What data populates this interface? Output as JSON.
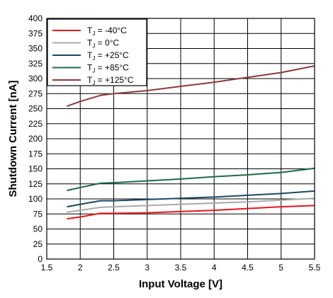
{
  "chart_data": {
    "type": "line",
    "xlabel": "Input Voltage [V]",
    "ylabel": "Shutdown Current [nA]",
    "xlim": [
      1.5,
      5.5
    ],
    "ylim": [
      0,
      400
    ],
    "xticks": [
      1.5,
      2,
      2.5,
      3,
      3.5,
      4,
      4.5,
      5,
      5.5
    ],
    "xtick_labels": [
      "1.5",
      "2",
      "2.5",
      "3",
      "3.5",
      "4",
      "4.5",
      "5",
      "5.5"
    ],
    "yticks": [
      0,
      25,
      50,
      75,
      100,
      125,
      150,
      175,
      200,
      225,
      250,
      275,
      300,
      325,
      350,
      375,
      400
    ],
    "ytick_labels": [
      "0",
      "25",
      "50",
      "75",
      "100",
      "125",
      "150",
      "175",
      "200",
      "225",
      "250",
      "275",
      "300",
      "325",
      "350",
      "375",
      "400"
    ],
    "grid": true,
    "legend_position": "top-left",
    "series": [
      {
        "name": "T_J = -40°C",
        "legend_main": "T",
        "legend_sub": "J",
        "legend_rest": " = -40°C",
        "color": "#e8141c",
        "x": [
          1.8,
          2.0,
          2.3,
          2.5,
          3.0,
          3.5,
          4.0,
          4.5,
          5.0,
          5.5
        ],
        "y": [
          67,
          70,
          76,
          76,
          77,
          79,
          81,
          84,
          87,
          89
        ]
      },
      {
        "name": "T_J = 0°C",
        "legend_main": "T",
        "legend_sub": "J",
        "legend_rest": " = 0°C",
        "color": "#aaaaaa",
        "x": [
          1.8,
          2.0,
          2.3,
          2.5,
          3.0,
          3.5,
          4.0,
          4.5,
          5.0,
          5.5
        ],
        "y": [
          78,
          81,
          86,
          87,
          89,
          91,
          93,
          95,
          98,
          101
        ]
      },
      {
        "name": "T_J = +25°C",
        "legend_main": "T",
        "legend_sub": "J",
        "legend_rest": " = +25°C",
        "color": "#1b4a64",
        "x": [
          1.8,
          2.0,
          2.3,
          2.5,
          3.0,
          3.5,
          4.0,
          4.5,
          5.0,
          5.5
        ],
        "y": [
          87,
          91,
          97,
          97,
          99,
          101,
          103,
          106,
          109,
          113
        ]
      },
      {
        "name": "T_J = +85°C",
        "legend_main": "T",
        "legend_sub": "J",
        "legend_rest": " = +85°C",
        "color": "#1e6b46",
        "x": [
          1.8,
          2.0,
          2.3,
          2.5,
          3.0,
          3.5,
          4.0,
          4.5,
          5.0,
          5.5
        ],
        "y": [
          114,
          119,
          126,
          127,
          130,
          133,
          137,
          140,
          144,
          151
        ]
      },
      {
        "name": "T_J = +125°C",
        "legend_main": "T",
        "legend_sub": "J",
        "legend_rest": " = +125°C",
        "color": "#8b3a3e",
        "x": [
          1.8,
          2.0,
          2.3,
          2.5,
          3.0,
          3.5,
          4.0,
          4.5,
          5.0,
          5.5
        ],
        "y": [
          254,
          262,
          272,
          275,
          280,
          287,
          294,
          302,
          310,
          321
        ]
      }
    ]
  }
}
